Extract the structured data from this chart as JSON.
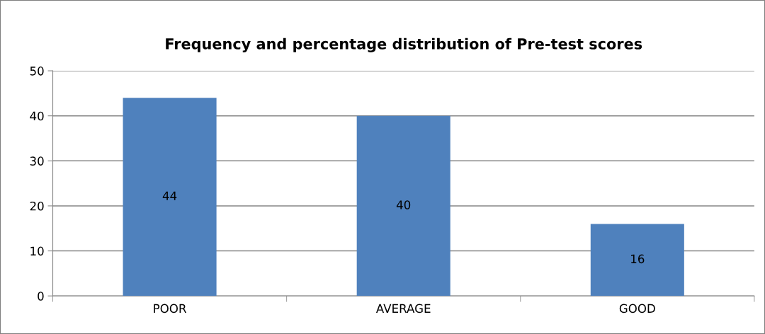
{
  "chart_data": {
    "type": "bar",
    "title": "Frequency and percentage distribution of Pre-test scores",
    "categories": [
      "POOR",
      "AVERAGE",
      "GOOD"
    ],
    "values": [
      44,
      40,
      16
    ],
    "color": "#4f81bd",
    "ylim": [
      0,
      50
    ],
    "yticks": [
      0,
      10,
      20,
      30,
      40,
      50
    ],
    "grid": "y",
    "data_labels": true,
    "legend": false
  }
}
